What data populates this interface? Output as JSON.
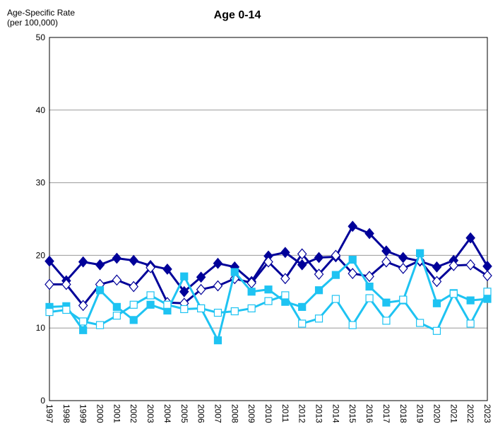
{
  "chart_data": {
    "type": "line",
    "title": "Age 0-14",
    "y_label": [
      "Age-Specific Rate",
      "(per 100,000)"
    ],
    "categories": [
      "1997",
      "1998",
      "1999",
      "2000",
      "2001",
      "2002",
      "2003",
      "2004",
      "2005",
      "2006",
      "2007",
      "2008",
      "2009",
      "2010",
      "2011",
      "2012",
      "2013",
      "2014",
      "2015",
      "2016",
      "2017",
      "2018",
      "2019",
      "2020",
      "2021",
      "2022",
      "2023"
    ],
    "series": [
      {
        "color": "#000099",
        "marker": "diamond",
        "filled": true,
        "values": [
          19.2,
          16.5,
          19.1,
          18.7,
          19.6,
          19.3,
          18.6,
          18.1,
          15.0,
          17.0,
          18.9,
          18.4,
          16.4,
          19.9,
          20.4,
          18.7,
          19.7,
          19.8,
          24.0,
          23.0,
          20.6,
          19.7,
          19.2,
          18.4,
          19.3,
          22.4,
          18.5
        ]
      },
      {
        "color": "#000099",
        "marker": "diamond",
        "filled": false,
        "values": [
          16.0,
          16.0,
          13.1,
          16.0,
          16.6,
          15.7,
          18.3,
          13.5,
          13.4,
          15.3,
          15.8,
          16.8,
          16.2,
          19.1,
          16.8,
          20.2,
          17.4,
          20.0,
          17.5,
          17.1,
          19.1,
          18.2,
          19.3,
          16.4,
          18.6,
          18.7,
          17.2
        ]
      },
      {
        "color": "#1ec3f2",
        "marker": "square",
        "filled": true,
        "values": [
          12.9,
          13.0,
          9.7,
          15.2,
          12.9,
          11.1,
          13.2,
          12.4,
          17.1,
          12.7,
          8.3,
          17.7,
          15.0,
          15.3,
          13.6,
          12.9,
          15.2,
          17.3,
          19.4,
          15.7,
          13.5,
          13.8,
          20.3,
          13.4,
          14.8,
          13.8,
          14.0
        ]
      },
      {
        "color": "#1ec3f2",
        "marker": "square",
        "filled": false,
        "values": [
          12.2,
          12.5,
          10.9,
          10.4,
          11.7,
          13.2,
          14.5,
          13.2,
          12.6,
          12.7,
          12.1,
          12.3,
          12.7,
          13.7,
          14.5,
          10.6,
          11.3,
          14.0,
          10.4,
          14.1,
          11.0,
          13.9,
          10.7,
          9.6,
          14.7,
          10.6,
          15.0
        ]
      }
    ],
    "ylim": [
      0,
      50
    ],
    "yticks": [
      0,
      10,
      20,
      30,
      40,
      50
    ],
    "grid": true
  }
}
